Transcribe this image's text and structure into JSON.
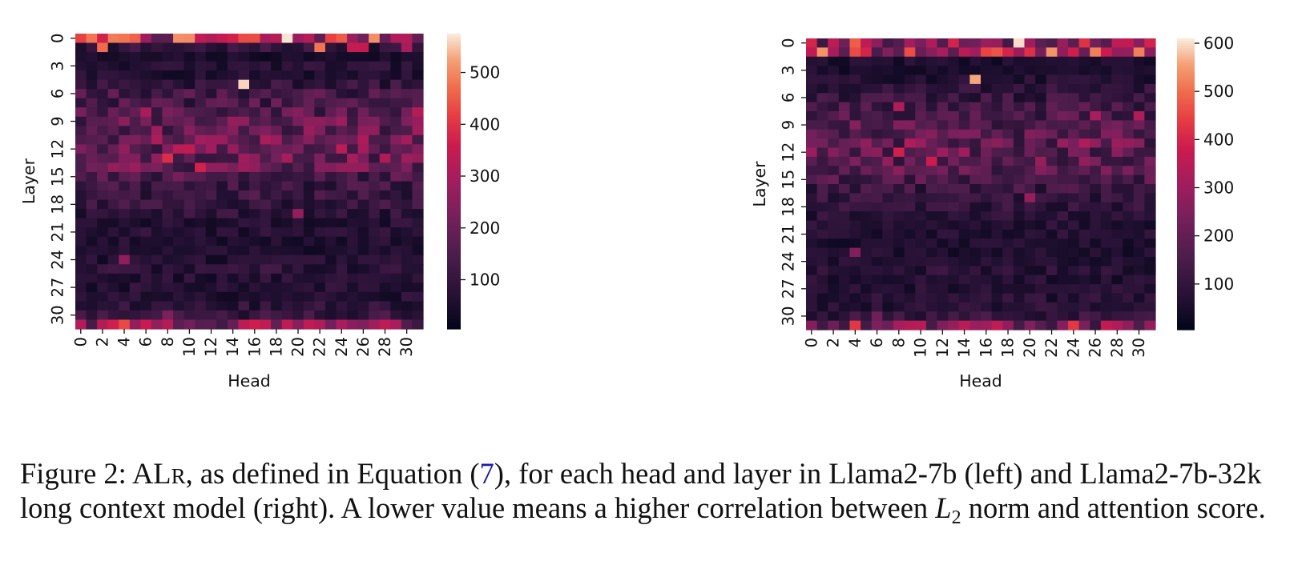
{
  "chart_data": [
    {
      "type": "heatmap",
      "model": "Llama2-7b",
      "xlabel": "Head",
      "ylabel": "Layer",
      "x_tick_labels": [
        "0",
        "2",
        "4",
        "6",
        "8",
        "10",
        "12",
        "14",
        "16",
        "18",
        "20",
        "22",
        "24",
        "26",
        "28",
        "30"
      ],
      "y_tick_labels": [
        "0",
        "3",
        "6",
        "9",
        "12",
        "15",
        "18",
        "21",
        "24",
        "27",
        "30"
      ],
      "n_rows": 32,
      "n_cols": 32,
      "colorbar": {
        "ticks": [
          100,
          200,
          300,
          400,
          500
        ],
        "min": 5,
        "max": 575
      },
      "values": [],
      "row_means": [
        330,
        90,
        45,
        70,
        65,
        95,
        130,
        135,
        160,
        185,
        190,
        200,
        195,
        200,
        180,
        140,
        110,
        110,
        100,
        85,
        70,
        70,
        60,
        60,
        65,
        85,
        70,
        70,
        70,
        80,
        100,
        250
      ],
      "hotspots": [
        [
          0,
          0,
          420
        ],
        [
          0,
          4,
          480
        ],
        [
          0,
          19,
          570
        ],
        [
          1,
          2,
          470
        ],
        [
          1,
          22,
          480
        ],
        [
          1,
          25,
          350
        ],
        [
          1,
          26,
          350
        ],
        [
          1,
          30,
          300
        ],
        [
          5,
          15,
          560
        ],
        [
          8,
          6,
          300
        ],
        [
          8,
          31,
          320
        ],
        [
          11,
          11,
          290
        ],
        [
          12,
          10,
          340
        ],
        [
          12,
          9,
          330
        ],
        [
          12,
          24,
          330
        ],
        [
          13,
          8,
          390
        ],
        [
          14,
          11,
          370
        ],
        [
          14,
          3,
          270
        ],
        [
          14,
          15,
          280
        ],
        [
          19,
          20,
          270
        ],
        [
          24,
          4,
          260
        ],
        [
          30,
          8,
          230
        ],
        [
          31,
          4,
          430
        ],
        [
          31,
          0,
          320
        ]
      ],
      "seed": 7
    },
    {
      "type": "heatmap",
      "model": "Llama2-7b-32k",
      "xlabel": "Head",
      "ylabel": "Layer",
      "x_tick_labels": [
        "0",
        "2",
        "4",
        "6",
        "8",
        "10",
        "12",
        "14",
        "16",
        "18",
        "20",
        "22",
        "24",
        "26",
        "28",
        "30"
      ],
      "y_tick_labels": [
        "0",
        "3",
        "6",
        "9",
        "12",
        "15",
        "18",
        "21",
        "24",
        "27",
        "30"
      ],
      "n_rows": 32,
      "n_cols": 32,
      "colorbar": {
        "ticks": [
          100,
          200,
          300,
          400,
          500,
          600
        ],
        "min": 5,
        "max": 610
      },
      "values": [],
      "row_means": [
        260,
        300,
        60,
        55,
        70,
        90,
        110,
        130,
        150,
        170,
        180,
        190,
        195,
        190,
        180,
        150,
        120,
        110,
        100,
        80,
        70,
        70,
        60,
        60,
        65,
        80,
        70,
        70,
        75,
        80,
        100,
        240
      ],
      "hotspots": [
        [
          0,
          0,
          400
        ],
        [
          0,
          4,
          480
        ],
        [
          0,
          19,
          600
        ],
        [
          0,
          25,
          420
        ],
        [
          1,
          1,
          540
        ],
        [
          1,
          4,
          460
        ],
        [
          1,
          17,
          470
        ],
        [
          1,
          22,
          540
        ],
        [
          1,
          26,
          520
        ],
        [
          1,
          30,
          520
        ],
        [
          4,
          15,
          560
        ],
        [
          7,
          8,
          330
        ],
        [
          8,
          26,
          320
        ],
        [
          8,
          30,
          330
        ],
        [
          11,
          9,
          330
        ],
        [
          11,
          25,
          330
        ],
        [
          12,
          8,
          390
        ],
        [
          13,
          11,
          380
        ],
        [
          12,
          14,
          300
        ],
        [
          17,
          20,
          290
        ],
        [
          23,
          4,
          250
        ],
        [
          30,
          6,
          220
        ],
        [
          31,
          4,
          430
        ],
        [
          31,
          24,
          430
        ]
      ],
      "seed": 19
    }
  ],
  "caption": {
    "prefix": "Figure 2: ",
    "metric_main": "AL",
    "metric_smallcaps": "R",
    "part1": ", as defined in Equation (",
    "equation_ref": "7",
    "part2": "), for each head and layer in Llama2-7b (left) and Llama2-7b-32k long context model (right). A lower value means a higher correlation between ",
    "math_var": "L",
    "math_sub": "2",
    "part3": " norm and attention score."
  }
}
